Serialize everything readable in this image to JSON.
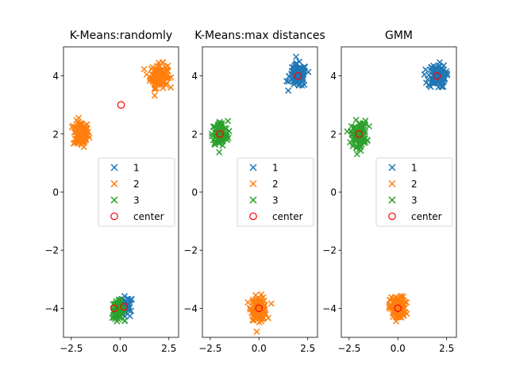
{
  "chart_data": [
    {
      "type": "scatter",
      "title": "K-Means:randomly",
      "xlim": [
        -2.9,
        3.0
      ],
      "ylim": [
        -5.0,
        5.0
      ],
      "xticks": [
        -2.5,
        0.0,
        2.5
      ],
      "yticks": [
        -4,
        -2,
        0,
        2,
        4
      ],
      "series": [
        {
          "name": "1",
          "color": "#1f77b4",
          "marker": "x",
          "clusters": [
            {
              "cx": 0.3,
              "cy": -3.95,
              "sx": 0.18,
              "sy": 0.18,
              "n": 45
            }
          ]
        },
        {
          "name": "2",
          "color": "#ff7f0e",
          "marker": "x",
          "clusters": [
            {
              "cx": -2.0,
              "cy": 2.0,
              "sx": 0.2,
              "sy": 0.22,
              "n": 110
            },
            {
              "cx": 2.0,
              "cy": 4.0,
              "sx": 0.22,
              "sy": 0.2,
              "n": 110
            }
          ]
        },
        {
          "name": "3",
          "color": "#2ca02c",
          "marker": "x",
          "clusters": [
            {
              "cx": -0.1,
              "cy": -4.05,
              "sx": 0.15,
              "sy": 0.15,
              "n": 80
            }
          ]
        }
      ],
      "centers": [
        [
          0.05,
          3.0
        ],
        [
          -0.3,
          -4.0
        ],
        [
          0.2,
          -3.95
        ]
      ],
      "legend": [
        "1",
        "2",
        "3",
        "center"
      ],
      "legend_position": "center-right"
    },
    {
      "type": "scatter",
      "title": "K-Means:max distances",
      "xlim": [
        -2.9,
        3.0
      ],
      "ylim": [
        -5.0,
        5.0
      ],
      "xticks": [
        -2.5,
        0.0,
        2.5
      ],
      "yticks": [
        -4,
        -2,
        0,
        2,
        4
      ],
      "series": [
        {
          "name": "1",
          "color": "#1f77b4",
          "marker": "x",
          "clusters": [
            {
              "cx": 2.0,
              "cy": 4.0,
              "sx": 0.22,
              "sy": 0.2,
              "n": 110
            }
          ]
        },
        {
          "name": "2",
          "color": "#ff7f0e",
          "marker": "x",
          "clusters": [
            {
              "cx": 0.0,
              "cy": -4.0,
              "sx": 0.2,
              "sy": 0.2,
              "n": 110
            }
          ]
        },
        {
          "name": "3",
          "color": "#2ca02c",
          "marker": "x",
          "clusters": [
            {
              "cx": -2.0,
              "cy": 2.0,
              "sx": 0.2,
              "sy": 0.22,
              "n": 110
            }
          ]
        }
      ],
      "centers": [
        [
          2.0,
          4.0
        ],
        [
          0.0,
          -4.0
        ],
        [
          -2.0,
          2.0
        ]
      ],
      "legend": [
        "1",
        "2",
        "3",
        "center"
      ],
      "legend_position": "center-right"
    },
    {
      "type": "scatter",
      "title": "GMM",
      "xlim": [
        -2.9,
        3.0
      ],
      "ylim": [
        -5.0,
        5.0
      ],
      "xticks": [
        -2.5,
        0.0,
        2.5
      ],
      "yticks": [
        -4,
        -2,
        0,
        2,
        4
      ],
      "series": [
        {
          "name": "1",
          "color": "#1f77b4",
          "marker": "x",
          "clusters": [
            {
              "cx": 2.0,
              "cy": 4.0,
              "sx": 0.22,
              "sy": 0.2,
              "n": 110
            }
          ]
        },
        {
          "name": "2",
          "color": "#ff7f0e",
          "marker": "x",
          "clusters": [
            {
              "cx": 0.0,
              "cy": -4.0,
              "sx": 0.2,
              "sy": 0.2,
              "n": 110
            }
          ]
        },
        {
          "name": "3",
          "color": "#2ca02c",
          "marker": "x",
          "clusters": [
            {
              "cx": -2.0,
              "cy": 2.0,
              "sx": 0.2,
              "sy": 0.22,
              "n": 110
            }
          ]
        }
      ],
      "centers": [
        [
          2.0,
          4.0
        ],
        [
          0.0,
          -4.0
        ],
        [
          -2.0,
          2.0
        ]
      ],
      "legend": [
        "1",
        "2",
        "3",
        "center"
      ],
      "legend_position": "center-right"
    }
  ]
}
